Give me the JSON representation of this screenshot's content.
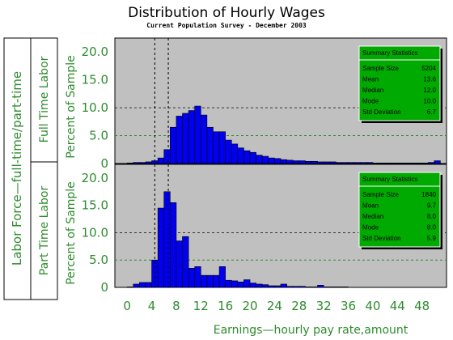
{
  "title": "Distribution of Hourly Wages",
  "subtitle": "Current Population Survey - December 2003",
  "colors": {
    "bar": "#0000ee",
    "panel_bg": "#c0c0c0",
    "axis_text": "#2e8b2e",
    "stats_box": "#00aa00"
  },
  "chart_data": {
    "type": "bar",
    "title": "Distribution of Hourly Wages",
    "subtitle": "Current Population Survey - December 2003",
    "xlabel": "Earnings—hourly pay rate,amount",
    "ylabel": "Percent of Sample",
    "group_axis_label": "Labor Force—full-time/part-time",
    "xlim": [
      -2,
      52
    ],
    "ylim": [
      0,
      22.5
    ],
    "x_ticks": [
      "0",
      "4",
      "8",
      "12",
      "16",
      "20",
      "24",
      "28",
      "32",
      "36",
      "40",
      "44",
      "48"
    ],
    "y_ticks": [
      "0",
      "5.0",
      "10.0",
      "15.0",
      "20.0"
    ],
    "bin_width": 1,
    "grid": "dashed horizontal at 5 and 10",
    "legend": "none",
    "panels": [
      {
        "name": "Full Time Labor",
        "bin_starts": [
          0,
          1,
          2,
          3,
          4,
          5,
          6,
          7,
          8,
          9,
          10,
          11,
          12,
          13,
          14,
          15,
          16,
          17,
          18,
          19,
          20,
          21,
          22,
          23,
          24,
          25,
          26,
          27,
          28,
          29,
          30,
          31,
          32,
          33,
          34,
          35,
          36,
          37,
          38,
          39,
          40,
          41,
          42,
          43,
          44,
          45,
          46,
          47,
          48,
          49,
          50
        ],
        "values": [
          0.1,
          0.2,
          0.2,
          0.3,
          0.5,
          1.0,
          2.5,
          6.5,
          8.5,
          9.0,
          9.5,
          10.3,
          8.7,
          6.5,
          5.7,
          5.7,
          4.2,
          3.5,
          2.8,
          2.3,
          2.0,
          1.5,
          1.3,
          1.0,
          0.9,
          0.7,
          0.6,
          0.5,
          0.5,
          0.4,
          0.4,
          0.3,
          0.3,
          0.3,
          0.2,
          0.2,
          0.2,
          0.2,
          0.2,
          0.2,
          0.1,
          0.1,
          0.1,
          0.1,
          0.1,
          0.1,
          0.1,
          0.1,
          0.1,
          0.2,
          0.5
        ],
        "vlines": [
          4.5,
          6.7
        ],
        "stats": {
          "heading": "Summary Statistics",
          "rows": [
            {
              "label": "Sample Size",
              "value": "5204"
            },
            {
              "label": "Mean",
              "value": "13.6"
            },
            {
              "label": "Median",
              "value": "12.0"
            },
            {
              "label": "Mode",
              "value": "10.0"
            },
            {
              "label": "Std Deviation",
              "value": "6.7"
            }
          ]
        }
      },
      {
        "name": "Part Time Labor",
        "bin_starts": [
          0,
          1,
          2,
          3,
          4,
          5,
          6,
          7,
          8,
          9,
          10,
          11,
          12,
          13,
          14,
          15,
          16,
          17,
          18,
          19,
          20,
          21,
          22,
          23,
          24,
          25,
          26,
          27,
          28,
          29,
          30,
          31,
          32,
          33,
          34,
          35,
          36,
          37,
          38,
          39,
          40,
          41,
          42,
          43,
          44,
          45,
          46,
          47,
          48,
          49,
          50
        ],
        "values": [
          0.1,
          0.6,
          0.9,
          0.9,
          5.0,
          14.5,
          17.5,
          15.5,
          8.5,
          9.3,
          3.5,
          3.8,
          2.2,
          2.2,
          2.2,
          3.8,
          1.3,
          1.2,
          1.0,
          1.4,
          0.8,
          0.6,
          0.5,
          0.3,
          0.3,
          0.6,
          0.2,
          0.2,
          0.2,
          0.1,
          0.1,
          0.4,
          0.1,
          0.1,
          0.1,
          0.1,
          0.0,
          0.0,
          0.0,
          0.0,
          0.0,
          0.0,
          0.0,
          0.0,
          0.0,
          0.0,
          0.0,
          0.0,
          0.0,
          0.0,
          0.0
        ],
        "vlines": [
          4.5,
          6.7
        ],
        "stats": {
          "heading": "Summary Statistics",
          "rows": [
            {
              "label": "Sample Size",
              "value": "1840"
            },
            {
              "label": "Mean",
              "value": "9.7"
            },
            {
              "label": "Median",
              "value": "8.0"
            },
            {
              "label": "Mode",
              "value": "8.0"
            },
            {
              "label": "Std Deviation",
              "value": "5.9"
            }
          ]
        }
      }
    ]
  }
}
